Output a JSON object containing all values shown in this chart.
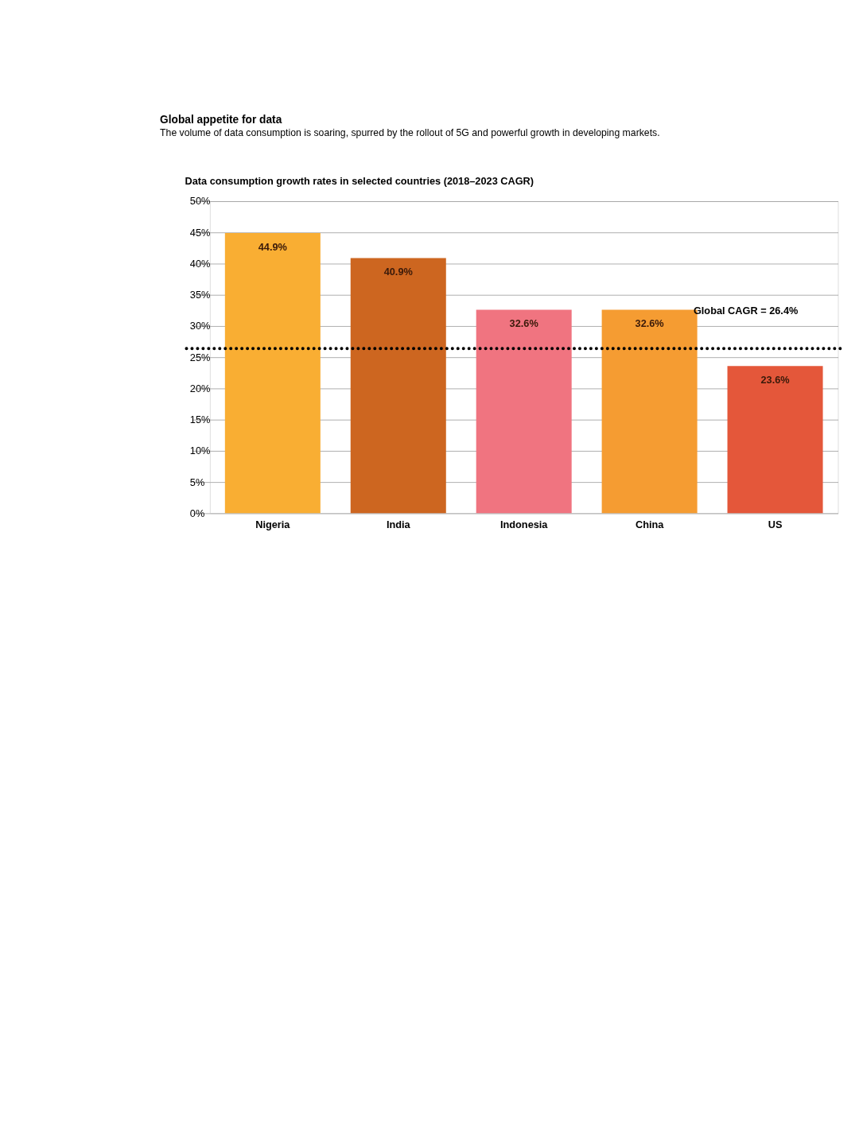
{
  "chart_data": {
    "type": "bar",
    "title": "Global appetite for data",
    "subtitle": "The volume of data consumption is soaring, spurred by the rollout of 5G and powerful growth in developing markets.",
    "annotations": [
      "Data consumption growth rates in selected countries (2018–2023 CAGR)"
    ],
    "categories": [
      "Nigeria",
      "India",
      "Indonesia",
      "China",
      "US"
    ],
    "values": [
      44.9,
      40.9,
      32.6,
      32.6,
      23.6
    ],
    "colors": [
      "#f9ae33",
      "#cd6620",
      "#f07480",
      "#f59c32",
      "#e4573a"
    ],
    "value_labels": [
      "44.9%",
      "40.9%",
      "32.6%",
      "32.6%",
      "23.6%"
    ],
    "ylim": [
      0,
      50
    ],
    "yticks": [
      {
        "value": 0,
        "label": "0%"
      },
      {
        "value": 5,
        "label": "5%"
      },
      {
        "value": 10,
        "label": "10%"
      },
      {
        "value": 15,
        "label": "15%"
      },
      {
        "value": 20,
        "label": "20%"
      },
      {
        "value": 25,
        "label": "25%"
      },
      {
        "value": 30,
        "label": "30%"
      },
      {
        "value": 35,
        "label": "35%"
      },
      {
        "value": 40,
        "label": "40%"
      },
      {
        "value": 45,
        "label": "45%"
      },
      {
        "value": 50,
        "label": "50%"
      }
    ],
    "ref_lines": [
      {
        "axis": "y",
        "value": 26.4,
        "label": "Global CAGR = 26.4%",
        "color": "#000000",
        "line_style": "dotted"
      }
    ],
    "grid": "y"
  }
}
